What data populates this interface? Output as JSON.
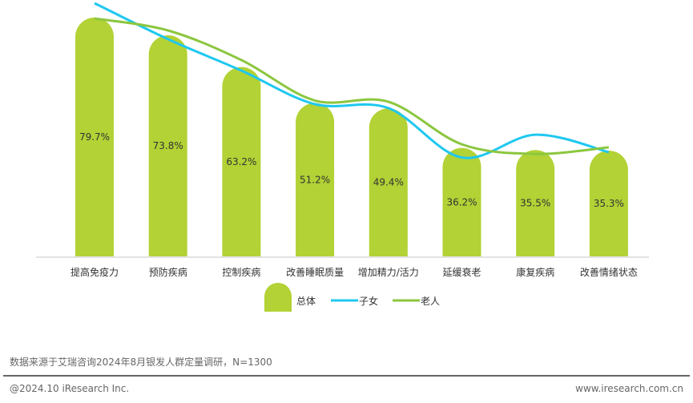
{
  "chart_data": {
    "type": "bar",
    "title": "",
    "xlabel": "",
    "ylabel": "",
    "ylim": [
      0,
      85
    ],
    "grid": false,
    "legend_position": "bottom-center",
    "categories": [
      "提高免疫力",
      "预防疾病",
      "控制疾病",
      "改善睡眠质量",
      "增加精力/活力",
      "延缓衰老",
      "康复疾病",
      "改善情绪状态"
    ],
    "series": [
      {
        "name": "总体",
        "kind": "bar",
        "color": "#b2d235",
        "values": [
          79.7,
          73.8,
          63.2,
          51.2,
          49.4,
          36.2,
          35.5,
          35.3
        ],
        "labels": [
          "79.7%",
          "73.8%",
          "63.2%",
          "51.2%",
          "49.4%",
          "36.2%",
          "35.5%",
          "35.3%"
        ]
      },
      {
        "name": "子女",
        "kind": "line",
        "color": "#1fc8f0",
        "values": [
          84.5,
          72.5,
          62,
          50.8,
          49.5,
          33,
          40.6,
          34.8
        ]
      },
      {
        "name": "老人",
        "kind": "line",
        "color": "#8cc63f",
        "values": [
          79.4,
          75.4,
          65.5,
          52,
          51.6,
          37.4,
          34.2,
          36.4
        ]
      }
    ]
  },
  "footer": {
    "source": "数据来源于艾瑞咨询2024年8月银发人群定量调研，N=1300",
    "copyright": "@2024.10 iResearch Inc.",
    "website": "www.iresearch.com.cn"
  }
}
